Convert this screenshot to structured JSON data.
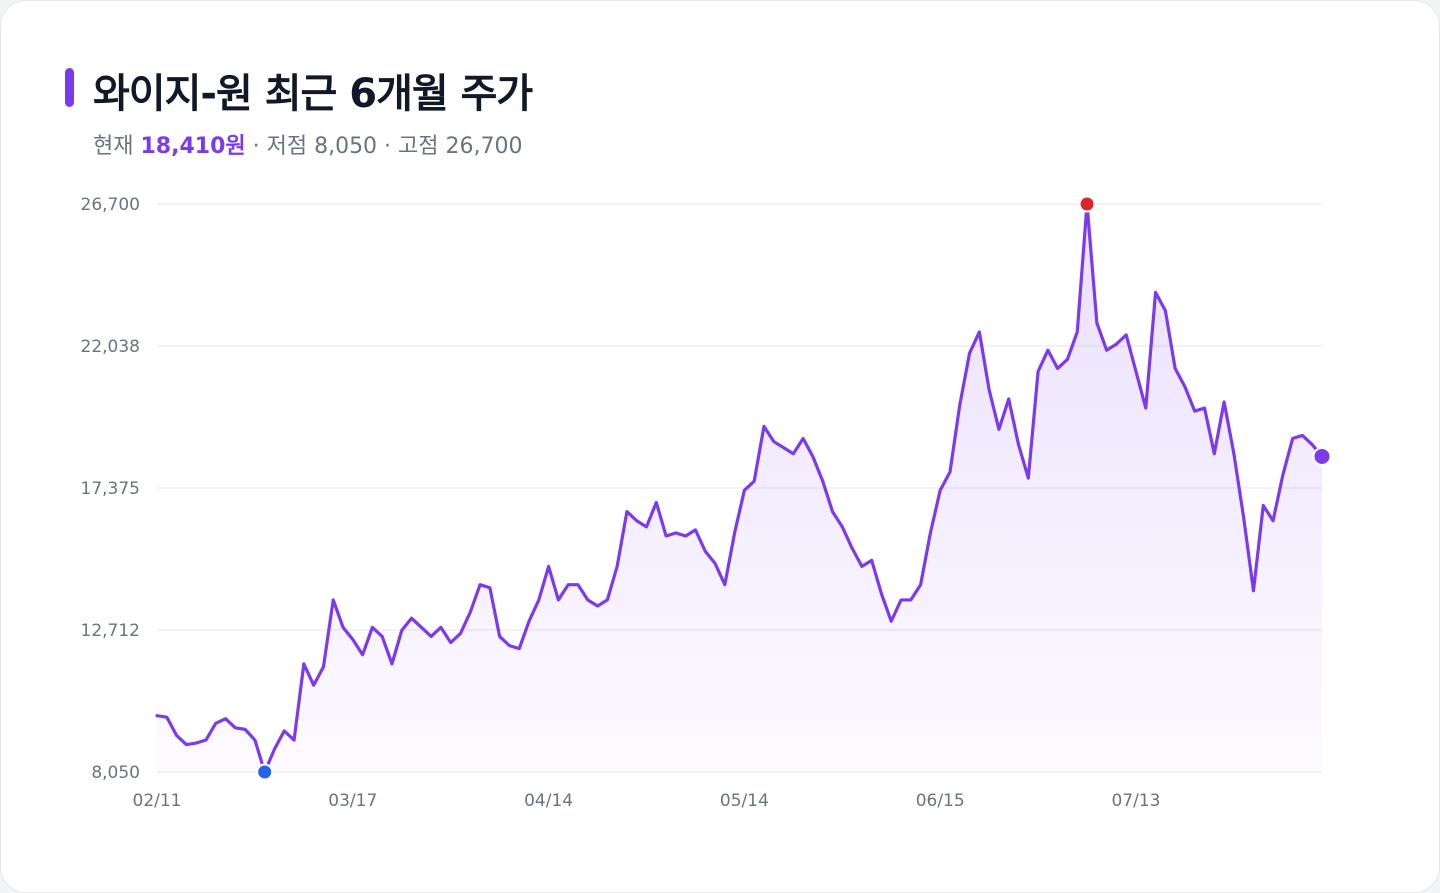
{
  "header": {
    "title": "와이지-원 최근 6개월 주가",
    "current_label": "현재",
    "current_value": "18,410원",
    "low_text": " · 저점 8,050",
    "high_text": " · 고점 26,700"
  },
  "colors": {
    "accent": "#7c3aed",
    "low_marker": "#2563eb",
    "high_marker": "#dc2626",
    "grid": "#e5e7eb"
  },
  "chart_data": {
    "type": "area",
    "title": "와이지-원 최근 6개월 주가",
    "xlabel": "",
    "ylabel": "",
    "ylim": [
      8050,
      26700
    ],
    "y_ticks": [
      8050,
      12712,
      17375,
      22038,
      26700
    ],
    "y_tick_labels": [
      "8,050",
      "12,712",
      "17,375",
      "22,038",
      "26,700"
    ],
    "x_tick_indices": [
      0,
      20,
      40,
      60,
      80,
      100
    ],
    "x_tick_labels": [
      "02/11",
      "03/17",
      "04/14",
      "05/14",
      "06/15",
      "07/13"
    ],
    "grid": true,
    "legend": "none",
    "markers": {
      "low_index": 11,
      "high_index": 95,
      "last_index": 119
    },
    "series": [
      {
        "values": [
          9900,
          9850,
          9250,
          8950,
          9000,
          9100,
          9650,
          9800,
          9500,
          9450,
          9100,
          8050,
          8800,
          9400,
          9100,
          11600,
          10900,
          11500,
          13700,
          12800,
          12400,
          11900,
          12800,
          12500,
          11600,
          12700,
          13100,
          12800,
          12500,
          12800,
          12300,
          12600,
          13300,
          14200,
          14100,
          12500,
          12200,
          12100,
          13000,
          13700,
          14800,
          13700,
          14200,
          14200,
          13700,
          13500,
          13700,
          14800,
          16600,
          16300,
          16100,
          16900,
          15800,
          15900,
          15800,
          16000,
          15300,
          14900,
          14200,
          15900,
          17300,
          17600,
          19400,
          18900,
          18700,
          18500,
          19000,
          18400,
          17600,
          16600,
          16100,
          15400,
          14800,
          15000,
          13900,
          13000,
          13700,
          13700,
          14200,
          15900,
          17300,
          17900,
          20100,
          21800,
          22500,
          20600,
          19300,
          20300,
          18800,
          17700,
          21200,
          21900,
          21300,
          21600,
          22500,
          26700,
          22800,
          21900,
          22100,
          22400,
          21200,
          20000,
          23800,
          23200,
          21300,
          20700,
          19900,
          20000,
          18500,
          20200,
          18500,
          16400,
          14000,
          16800,
          16300,
          17800,
          19000,
          19100,
          18800,
          18410
        ]
      }
    ]
  }
}
